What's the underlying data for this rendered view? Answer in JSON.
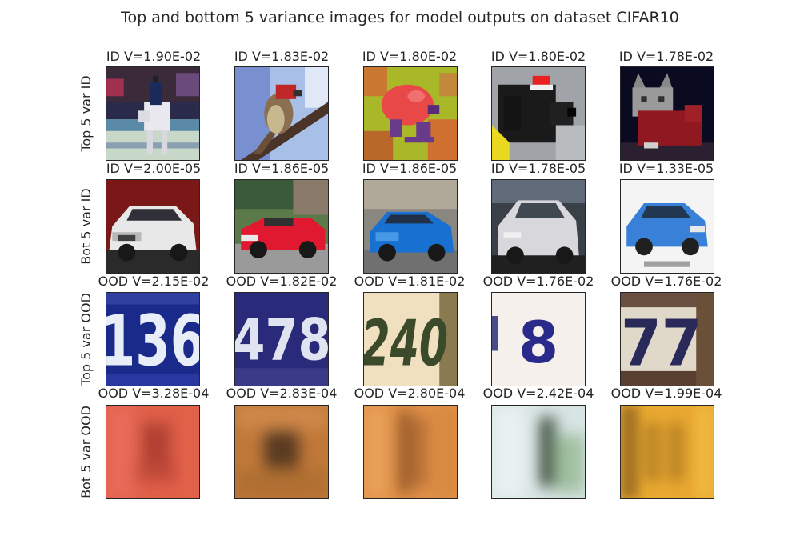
{
  "title": "Top and bottom 5 variance images for model outputs on dataset CIFAR10",
  "chart_data": {
    "type": "image_grid",
    "title": "Top and bottom 5 variance images for model outputs on dataset CIFAR10",
    "rows": [
      {
        "label": "Top 5 var ID",
        "titles": [
          "ID V=1.90E-02",
          "ID V=1.83E-02",
          "ID V=1.80E-02",
          "ID V=1.80E-02",
          "ID V=1.78E-02"
        ],
        "variances": [
          0.019,
          0.0183,
          0.018,
          0.018,
          0.0178
        ],
        "images": [
          "horse-rider-image",
          "bird-on-branch-image",
          "red-frog-image",
          "black-dog-image",
          "cat-image"
        ]
      },
      {
        "label": "Bot 5 var ID",
        "titles": [
          "ID V=2.00E-05",
          "ID V=1.86E-05",
          "ID V=1.86E-05",
          "ID V=1.78E-05",
          "ID V=1.33E-05"
        ],
        "variances": [
          2e-05,
          1.86e-05,
          1.86e-05,
          1.78e-05,
          1.33e-05
        ],
        "images": [
          "white-car-image",
          "red-convertible-image",
          "blue-car-image",
          "silver-car-image",
          "blue-hatchback-image"
        ]
      },
      {
        "label": "Top 5 var OOD",
        "titles": [
          "OOD V=2.15E-02",
          "OOD V=1.82E-02",
          "OOD V=1.81E-02",
          "OOD V=1.76E-02",
          "OOD V=1.76E-02"
        ],
        "variances": [
          0.0215,
          0.0182,
          0.0181,
          0.0176,
          0.0176
        ],
        "digits": [
          "136",
          "478",
          "240",
          "8",
          "77"
        ],
        "images": [
          "house-number-136-image",
          "house-number-478-image",
          "house-number-240-image",
          "house-number-8-image",
          "house-number-77-image"
        ]
      },
      {
        "label": "Bot 5 var OOD",
        "titles": [
          "OOD V=3.28E-04",
          "OOD V=2.83E-04",
          "OOD V=2.80E-04",
          "OOD V=2.42E-04",
          "OOD V=1.99E-04"
        ],
        "variances": [
          0.000328,
          0.000283,
          0.00028,
          0.000242,
          0.000199
        ],
        "images": [
          "blurry-red-digit-image",
          "blurry-brown-digit-image",
          "blurry-orange-digit-image",
          "blurry-pale-green-digit-image",
          "blurry-yellow-digit-image"
        ]
      }
    ]
  },
  "colors": {
    "text": "#262626",
    "border": "#262626",
    "background": "#ffffff"
  }
}
